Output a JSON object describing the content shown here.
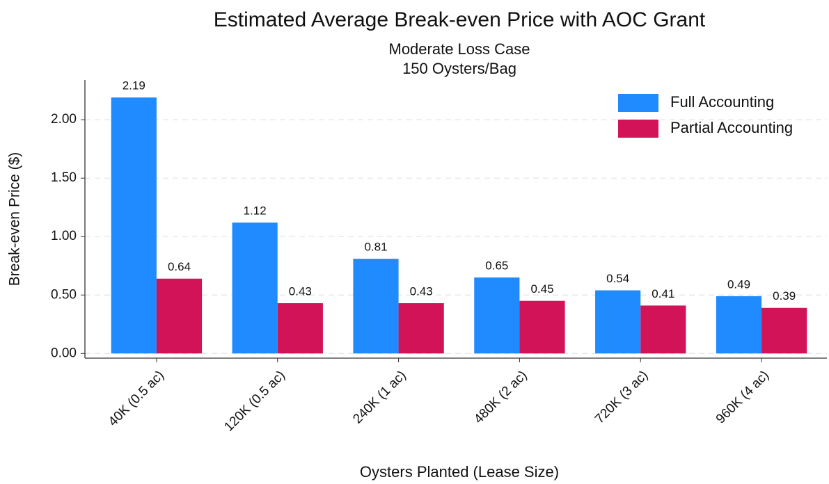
{
  "chart_data": {
    "type": "bar",
    "title": "Estimated Average Break-even Price with AOC Grant",
    "subtitle": [
      "Moderate Loss Case",
      "150 Oysters/Bag"
    ],
    "x_label": "Oysters Planted (Lease Size)",
    "y_label": "Break-even Price ($)",
    "categories": [
      "40K (0.5 ac)",
      "120K (0.5 ac)",
      "240K (1 ac)",
      "480K (2 ac)",
      "720K (3 ac)",
      "960K (4 ac)"
    ],
    "series": [
      {
        "name": "Full Accounting",
        "color": "#1f8bff",
        "values": [
          2.19,
          1.12,
          0.81,
          0.65,
          0.54,
          0.49
        ]
      },
      {
        "name": "Partial Accounting",
        "color": "#d31357",
        "values": [
          0.64,
          0.43,
          0.43,
          0.45,
          0.41,
          0.39
        ]
      }
    ],
    "ylim": [
      -0.04,
      2.34
    ],
    "yticks": [
      {
        "value": 0,
        "label": "0.00"
      },
      {
        "value": 0.5,
        "label": "0.50"
      },
      {
        "value": 1,
        "label": "1.00"
      },
      {
        "value": 1.5,
        "label": "1.50"
      },
      {
        "value": 2,
        "label": "2.00"
      }
    ],
    "grid": true,
    "legend": "upper right"
  }
}
